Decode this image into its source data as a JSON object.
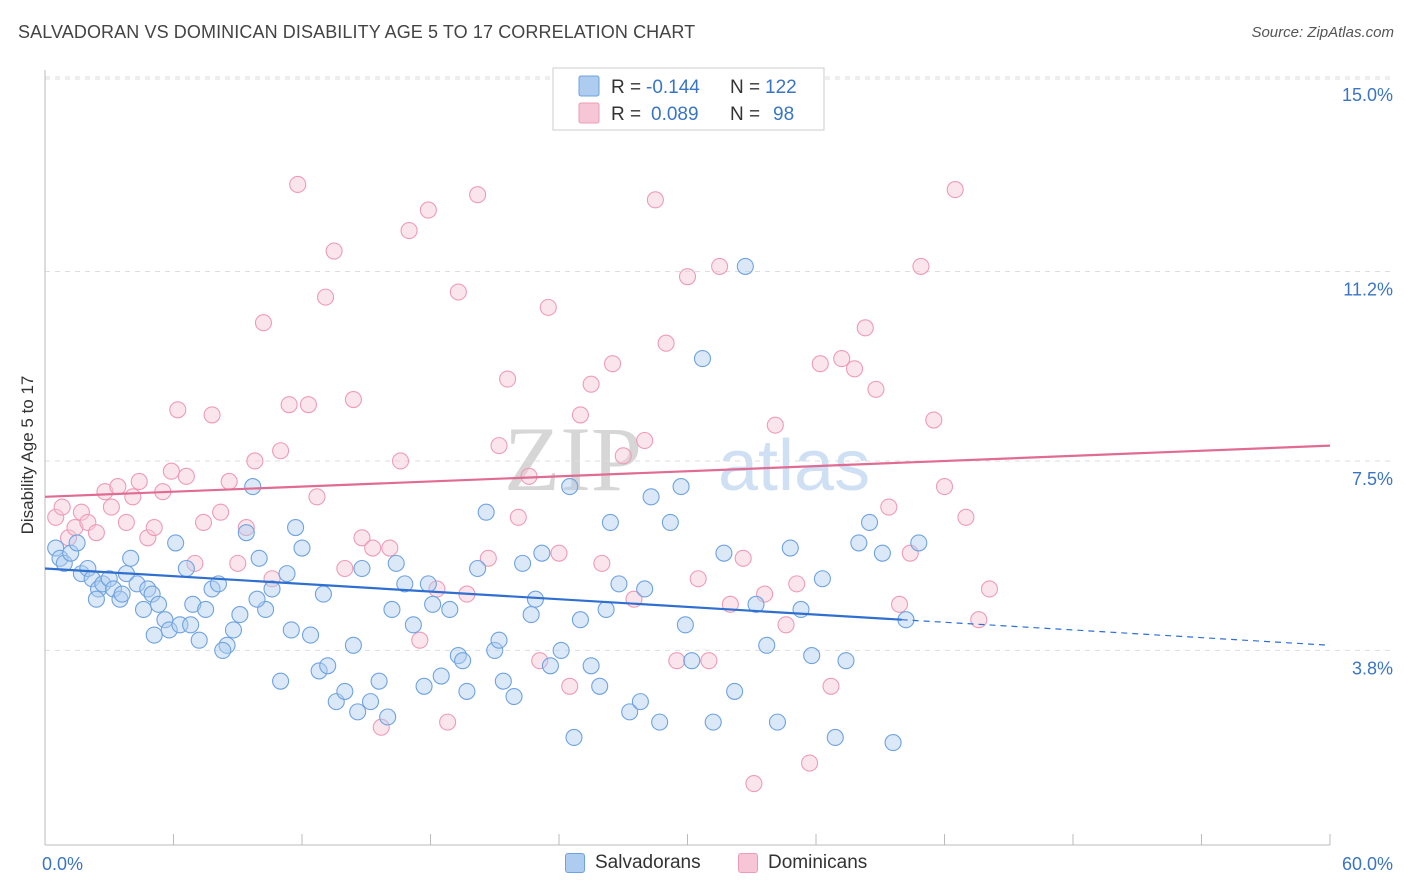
{
  "title": "SALVADORAN VS DOMINICAN DISABILITY AGE 5 TO 17 CORRELATION CHART",
  "source": "Source: ZipAtlas.com",
  "watermark": {
    "part1": "ZIP",
    "part2": "atlas"
  },
  "colors": {
    "blue": "#6fa3e0",
    "blue_fill": "#aecbf0",
    "blue_line": "#2f6fd0",
    "pink": "#ee9cb6",
    "pink_fill": "#f6c6d6",
    "pink_line": "#e06b93",
    "grid": "#dddddd",
    "axis_text": "#3a75c4"
  },
  "legend_top": [
    {
      "r_label": "R =",
      "r_value": "-0.144",
      "n_label": "N =",
      "n_value": "122"
    },
    {
      "r_label": "R =",
      "r_value": "0.089",
      "n_label": "N =",
      "n_value": "98"
    }
  ],
  "legend_bottom": [
    "Salvadorans",
    "Dominicans"
  ],
  "chart_data": {
    "type": "scatter",
    "title": "SALVADORAN VS DOMINICAN DISABILITY AGE 5 TO 17 CORRELATION CHART",
    "xlabel": "",
    "ylabel": "Disability Age 5 to 17",
    "xlim": [
      0,
      60
    ],
    "ylim": [
      0,
      15.8
    ],
    "x_tick_labels": [
      "0.0%",
      "60.0%"
    ],
    "y_ticks": [
      3.8,
      7.5,
      11.2,
      15.0
    ],
    "y_tick_labels": [
      "3.8%",
      "7.5%",
      "11.2%",
      "15.0%"
    ],
    "grid": "horizontal dashed",
    "legend_position": "top-center",
    "series": [
      {
        "name": "Salvadorans",
        "color": "#6fa3e0",
        "trend": {
          "x0": 0,
          "y0": 5.4,
          "x1": 40,
          "y1": 4.4,
          "dashed_to_x": 60,
          "dashed_to_y": 3.9
        },
        "points": [
          [
            0.5,
            5.8
          ],
          [
            0.7,
            5.6
          ],
          [
            0.9,
            5.5
          ],
          [
            1.2,
            5.7
          ],
          [
            1.5,
            5.9
          ],
          [
            1.7,
            5.3
          ],
          [
            2.0,
            5.4
          ],
          [
            2.2,
            5.2
          ],
          [
            2.5,
            5.0
          ],
          [
            2.7,
            5.1
          ],
          [
            3.0,
            5.2
          ],
          [
            3.2,
            5.0
          ],
          [
            3.5,
            4.8
          ],
          [
            3.8,
            5.3
          ],
          [
            4.0,
            5.6
          ],
          [
            4.3,
            5.1
          ],
          [
            4.6,
            4.6
          ],
          [
            4.8,
            5.0
          ],
          [
            5.0,
            4.9
          ],
          [
            5.3,
            4.7
          ],
          [
            5.6,
            4.4
          ],
          [
            5.8,
            4.2
          ],
          [
            6.1,
            5.9
          ],
          [
            6.3,
            4.3
          ],
          [
            6.6,
            5.4
          ],
          [
            6.9,
            4.7
          ],
          [
            7.2,
            4.0
          ],
          [
            7.5,
            4.6
          ],
          [
            7.8,
            5.0
          ],
          [
            8.1,
            5.1
          ],
          [
            8.5,
            3.9
          ],
          [
            8.8,
            4.2
          ],
          [
            9.1,
            4.5
          ],
          [
            9.4,
            6.1
          ],
          [
            9.7,
            7.0
          ],
          [
            10.0,
            5.6
          ],
          [
            10.3,
            4.6
          ],
          [
            10.6,
            5.0
          ],
          [
            11.0,
            3.2
          ],
          [
            11.3,
            5.3
          ],
          [
            11.7,
            6.2
          ],
          [
            12.0,
            5.8
          ],
          [
            12.4,
            4.1
          ],
          [
            12.8,
            3.4
          ],
          [
            13.2,
            3.5
          ],
          [
            13.6,
            2.8
          ],
          [
            14.0,
            3.0
          ],
          [
            14.4,
            3.9
          ],
          [
            14.8,
            5.4
          ],
          [
            15.2,
            2.8
          ],
          [
            15.6,
            3.2
          ],
          [
            16.0,
            2.5
          ],
          [
            16.4,
            5.5
          ],
          [
            16.8,
            5.1
          ],
          [
            17.2,
            4.3
          ],
          [
            17.7,
            3.1
          ],
          [
            18.1,
            4.7
          ],
          [
            18.5,
            3.3
          ],
          [
            18.9,
            4.6
          ],
          [
            19.3,
            3.7
          ],
          [
            19.7,
            3.0
          ],
          [
            20.2,
            5.4
          ],
          [
            20.6,
            6.5
          ],
          [
            21.0,
            3.8
          ],
          [
            21.4,
            3.2
          ],
          [
            21.9,
            2.9
          ],
          [
            22.3,
            5.5
          ],
          [
            22.7,
            4.5
          ],
          [
            23.2,
            5.7
          ],
          [
            23.6,
            3.5
          ],
          [
            24.1,
            3.8
          ],
          [
            24.5,
            7.0
          ],
          [
            25.0,
            4.4
          ],
          [
            25.5,
            3.5
          ],
          [
            25.9,
            3.1
          ],
          [
            26.4,
            6.3
          ],
          [
            26.8,
            5.1
          ],
          [
            27.3,
            2.6
          ],
          [
            27.8,
            2.8
          ],
          [
            28.3,
            6.8
          ],
          [
            28.7,
            2.4
          ],
          [
            29.2,
            6.3
          ],
          [
            29.7,
            7.0
          ],
          [
            30.2,
            3.6
          ],
          [
            30.7,
            9.5
          ],
          [
            31.2,
            2.4
          ],
          [
            31.7,
            5.7
          ],
          [
            32.2,
            3.0
          ],
          [
            32.7,
            11.3
          ],
          [
            33.2,
            4.7
          ],
          [
            33.7,
            3.9
          ],
          [
            34.2,
            2.4
          ],
          [
            34.8,
            5.8
          ],
          [
            35.3,
            4.6
          ],
          [
            35.8,
            3.7
          ],
          [
            36.3,
            5.2
          ],
          [
            36.9,
            2.1
          ],
          [
            37.4,
            3.6
          ],
          [
            38.0,
            5.9
          ],
          [
            38.5,
            6.3
          ],
          [
            39.1,
            5.7
          ],
          [
            39.6,
            2.0
          ],
          [
            40.2,
            4.4
          ],
          [
            40.8,
            5.9
          ],
          [
            2.4,
            4.8
          ],
          [
            3.6,
            4.9
          ],
          [
            5.1,
            4.1
          ],
          [
            6.8,
            4.3
          ],
          [
            8.3,
            3.8
          ],
          [
            9.9,
            4.8
          ],
          [
            11.5,
            4.2
          ],
          [
            13.0,
            4.9
          ],
          [
            14.6,
            2.6
          ],
          [
            16.2,
            4.6
          ],
          [
            17.9,
            5.1
          ],
          [
            19.5,
            3.6
          ],
          [
            21.2,
            4.0
          ],
          [
            22.9,
            4.8
          ],
          [
            24.7,
            2.1
          ],
          [
            26.2,
            4.6
          ],
          [
            28.0,
            5.0
          ],
          [
            29.9,
            4.3
          ]
        ]
      },
      {
        "name": "Dominicans",
        "color": "#ee9cb6",
        "trend": {
          "x0": 0,
          "y0": 6.8,
          "x1": 60,
          "y1": 7.8
        },
        "points": [
          [
            0.5,
            6.4
          ],
          [
            0.8,
            6.6
          ],
          [
            1.1,
            6.0
          ],
          [
            1.4,
            6.2
          ],
          [
            1.7,
            6.5
          ],
          [
            2.0,
            6.3
          ],
          [
            2.4,
            6.1
          ],
          [
            2.8,
            6.9
          ],
          [
            3.1,
            6.6
          ],
          [
            3.4,
            7.0
          ],
          [
            3.8,
            6.3
          ],
          [
            4.1,
            6.8
          ],
          [
            4.4,
            7.1
          ],
          [
            4.8,
            6.0
          ],
          [
            5.1,
            6.2
          ],
          [
            5.5,
            6.9
          ],
          [
            5.9,
            7.3
          ],
          [
            6.2,
            8.5
          ],
          [
            6.6,
            7.2
          ],
          [
            7.0,
            5.5
          ],
          [
            7.4,
            6.3
          ],
          [
            7.8,
            8.4
          ],
          [
            8.2,
            6.5
          ],
          [
            8.6,
            7.1
          ],
          [
            9.0,
            5.5
          ],
          [
            9.4,
            6.2
          ],
          [
            9.8,
            7.5
          ],
          [
            10.2,
            10.2
          ],
          [
            10.6,
            5.2
          ],
          [
            11.0,
            7.7
          ],
          [
            11.4,
            8.6
          ],
          [
            11.8,
            12.9
          ],
          [
            12.3,
            8.6
          ],
          [
            12.7,
            6.8
          ],
          [
            13.1,
            10.7
          ],
          [
            13.5,
            11.6
          ],
          [
            14.0,
            5.4
          ],
          [
            14.4,
            8.7
          ],
          [
            14.8,
            6.0
          ],
          [
            15.3,
            5.8
          ],
          [
            15.7,
            2.3
          ],
          [
            16.1,
            5.8
          ],
          [
            16.6,
            7.5
          ],
          [
            17.0,
            12.0
          ],
          [
            17.5,
            4.0
          ],
          [
            17.9,
            12.4
          ],
          [
            18.3,
            5.0
          ],
          [
            18.8,
            2.4
          ],
          [
            19.3,
            10.8
          ],
          [
            19.7,
            4.9
          ],
          [
            20.2,
            12.7
          ],
          [
            20.7,
            5.6
          ],
          [
            21.2,
            7.8
          ],
          [
            21.6,
            9.1
          ],
          [
            22.1,
            6.4
          ],
          [
            22.6,
            7.2
          ],
          [
            23.1,
            3.6
          ],
          [
            23.5,
            10.5
          ],
          [
            24.0,
            5.7
          ],
          [
            24.5,
            3.1
          ],
          [
            25.0,
            8.4
          ],
          [
            25.5,
            9.0
          ],
          [
            26.0,
            5.5
          ],
          [
            26.5,
            9.4
          ],
          [
            27.0,
            7.6
          ],
          [
            27.5,
            4.8
          ],
          [
            28.0,
            7.9
          ],
          [
            28.5,
            12.6
          ],
          [
            29.0,
            9.8
          ],
          [
            29.5,
            3.6
          ],
          [
            30.0,
            11.1
          ],
          [
            30.5,
            5.2
          ],
          [
            31.0,
            3.6
          ],
          [
            31.5,
            11.3
          ],
          [
            32.0,
            4.7
          ],
          [
            32.6,
            5.6
          ],
          [
            33.1,
            1.2
          ],
          [
            33.6,
            4.9
          ],
          [
            34.1,
            8.2
          ],
          [
            34.6,
            4.3
          ],
          [
            35.1,
            5.1
          ],
          [
            35.7,
            1.6
          ],
          [
            36.2,
            9.4
          ],
          [
            36.7,
            3.1
          ],
          [
            37.2,
            9.5
          ],
          [
            37.8,
            9.3
          ],
          [
            38.3,
            10.1
          ],
          [
            38.8,
            8.9
          ],
          [
            39.4,
            6.6
          ],
          [
            39.9,
            4.7
          ],
          [
            40.4,
            5.7
          ],
          [
            40.9,
            11.3
          ],
          [
            41.5,
            8.3
          ],
          [
            42.0,
            7.0
          ],
          [
            42.5,
            12.8
          ],
          [
            43.0,
            6.4
          ],
          [
            43.6,
            4.4
          ],
          [
            44.1,
            5.0
          ]
        ]
      }
    ]
  }
}
